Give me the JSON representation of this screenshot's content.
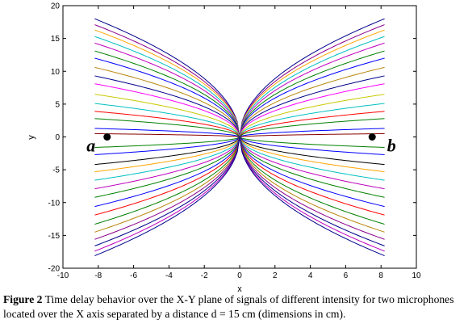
{
  "chart_data": {
    "type": "line",
    "title": "",
    "xlabel": "x",
    "ylabel": "y",
    "xlim": [
      -10,
      10
    ],
    "ylim": [
      -20,
      20
    ],
    "xticks": [
      -10,
      -8,
      -6,
      -4,
      -2,
      0,
      2,
      4,
      6,
      8,
      10
    ],
    "yticks": [
      -20,
      -15,
      -10,
      -5,
      0,
      5,
      10,
      15,
      20
    ],
    "grid": false,
    "x_range_curves": [
      -8.2,
      8.2
    ],
    "curves_end_y": [
      18.0,
      17.1,
      16.3,
      15.3,
      14.3,
      13.1,
      12.0,
      10.6,
      9.3,
      8.1,
      6.5,
      5.1,
      3.9,
      2.8,
      1.3,
      0.5,
      -1.6,
      -2.7,
      -4.2,
      -5.3,
      -6.6,
      -7.9,
      -9.2,
      -10.6,
      -11.9,
      -13.3,
      -14.5,
      -15.6,
      -16.6,
      -17.4,
      -18.1
    ],
    "curve_colors": [
      "#00008b",
      "#8b008b",
      "#ffa500",
      "#00bfbf",
      "#bf00bf",
      "#008000",
      "#0000ff",
      "#b8860b",
      "#00008b",
      "#ff00ff",
      "#c8c800",
      "#00bfbf",
      "#ff0000",
      "#008000",
      "#0000ff",
      "#8b0000",
      "#008000",
      "#0000ff",
      "#000000",
      "#ffa500",
      "#00bfbf",
      "#bf00bf",
      "#008000",
      "#0000ff",
      "#ff0000",
      "#008000",
      "#b8860b",
      "#8b008b",
      "#00008b",
      "#bf00bf",
      "#00008b"
    ],
    "microphones": [
      {
        "label": "a",
        "x": -7.5,
        "y": 0
      },
      {
        "label": "b",
        "x": 7.5,
        "y": 0
      }
    ]
  },
  "caption": {
    "prefix": "Figure 2",
    "text": " Time delay behavior over the X-Y plane of signals of different intensity for two microphones located over the X axis separated  by a distance d = 15 cm (dimensions in cm)."
  }
}
